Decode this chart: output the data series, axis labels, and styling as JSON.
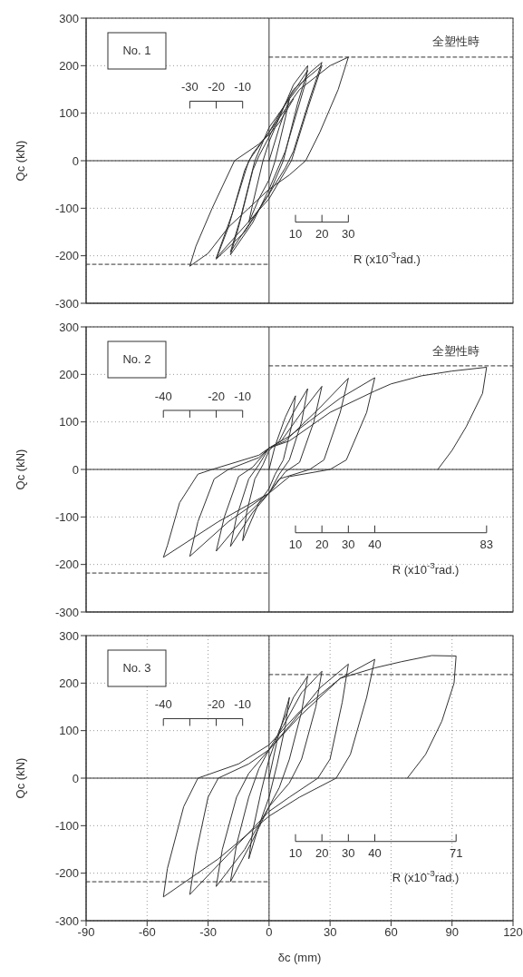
{
  "chart_data": [
    {
      "type": "line",
      "ylabel": "Qc (kN)",
      "xlim": [
        -90,
        120
      ],
      "xticks": [
        -90,
        -60,
        -30,
        0,
        30,
        60,
        90,
        120
      ],
      "ylim": [
        -300,
        300
      ],
      "yticks": [
        -300,
        -200,
        -100,
        0,
        100,
        200,
        300
      ],
      "grid": true,
      "tick_labels": "y",
      "annotations": [
        "No. 1",
        "全塑性時",
        "-30",
        "-20",
        "-10",
        "10",
        "20",
        "30",
        "R  (x10$^{-3}$rad.)"
      ],
      "series": [
        {
          "type": "line",
          "color": "#333333",
          "x": [
            0,
            0
          ],
          "values": [
            -300,
            300
          ]
        },
        {
          "type": "line",
          "color": "#333333",
          "x": [
            -90,
            120
          ],
          "values": [
            0,
            0
          ]
        },
        {
          "color": "#333333",
          "x": [
            0,
            5,
            10,
            8,
            3,
            0,
            -5,
            -10,
            -8,
            -3,
            0,
            5,
            12,
            19,
            18,
            8,
            5,
            0,
            -8,
            -19,
            -15,
            -8,
            -5,
            0,
            8,
            19,
            14,
            7,
            0,
            -19,
            -14,
            -7,
            0,
            10,
            20,
            26,
            20,
            12,
            8,
            0,
            -12,
            -26,
            -20,
            -12,
            -8,
            0,
            12,
            26,
            19,
            11,
            0,
            -26,
            -18,
            -10,
            0,
            15,
            30,
            39,
            34,
            25,
            18,
            10,
            0,
            -20,
            -30,
            -39,
            -36,
            -28,
            -17,
            -5,
            0,
            5,
            12
          ],
          "values": [
            0,
            70,
            130,
            90,
            0,
            -40,
            -80,
            -130,
            -90,
            0,
            40,
            90,
            160,
            200,
            165,
            20,
            -10,
            -60,
            -130,
            -198,
            -140,
            -20,
            10,
            50,
            120,
            190,
            120,
            0,
            -70,
            -192,
            -120,
            0,
            70,
            130,
            185,
            207,
            130,
            20,
            -15,
            -70,
            -150,
            -207,
            -140,
            -20,
            15,
            60,
            150,
            200,
            110,
            0,
            -80,
            -205,
            -110,
            0,
            60,
            150,
            200,
            218,
            150,
            60,
            0,
            -30,
            -60,
            -140,
            -195,
            -222,
            -180,
            -100,
            0,
            35,
            55,
            80,
            130
          ]
        },
        {
          "type": "line",
          "color": "#333333",
          "line_style": "dashed",
          "x": [
            0,
            120
          ],
          "values": [
            218,
            218
          ]
        },
        {
          "type": "line",
          "color": "#333333",
          "line_style": "dashed",
          "x": [
            -90,
            0
          ],
          "values": [
            -218,
            -218
          ]
        }
      ]
    },
    {
      "type": "line",
      "ylabel": "Qc (kN)",
      "xlim": [
        -90,
        120
      ],
      "xticks": [
        -90,
        -60,
        -30,
        0,
        30,
        60,
        90,
        120
      ],
      "ylim": [
        -300,
        300
      ],
      "yticks": [
        -300,
        -200,
        -100,
        0,
        100,
        200,
        300
      ],
      "grid": true,
      "tick_labels": "y",
      "annotations": [
        "No. 2",
        "全塑性時",
        "-40",
        "-20",
        "-10",
        "10",
        "20",
        "30",
        "40",
        "83",
        "R  (x10$^{-3}$rad.)"
      ],
      "series": [
        {
          "type": "line",
          "color": "#333333",
          "x": [
            0,
            0
          ],
          "values": [
            -300,
            300
          ]
        },
        {
          "type": "line",
          "color": "#333333",
          "x": [
            -90,
            120
          ],
          "values": [
            0,
            0
          ]
        },
        {
          "color": "#333333",
          "x": [
            0,
            3,
            8,
            13,
            11,
            7,
            3,
            0,
            -5,
            -13,
            -11,
            -7,
            -3,
            0,
            5,
            12,
            19,
            16,
            10,
            5,
            0,
            -8,
            -19,
            -16,
            -10,
            -5,
            0,
            6,
            16,
            26,
            22,
            15,
            8,
            0,
            -12,
            -26,
            -22,
            -15,
            -8,
            0,
            8,
            25,
            39,
            35,
            27,
            20,
            5,
            0,
            -20,
            -39,
            -35,
            -27,
            -20,
            -5,
            0,
            10,
            35,
            52,
            48,
            38,
            30,
            10,
            0,
            -25,
            -52,
            -50,
            -44,
            -35,
            -28,
            -5,
            0,
            10,
            30,
            52,
            60,
            75,
            90,
            107,
            105,
            97,
            90,
            83
          ],
          "values": [
            0,
            50,
            110,
            155,
            90,
            20,
            -10,
            -40,
            -70,
            -150,
            -90,
            -20,
            10,
            40,
            60,
            120,
            170,
            100,
            20,
            -10,
            -50,
            -90,
            -162,
            -100,
            -20,
            10,
            45,
            60,
            120,
            175,
            100,
            15,
            -5,
            -50,
            -100,
            -172,
            -100,
            -15,
            5,
            45,
            60,
            130,
            192,
            120,
            20,
            0,
            -20,
            -50,
            -110,
            -183,
            -110,
            -20,
            0,
            25,
            45,
            70,
            150,
            193,
            120,
            20,
            0,
            -15,
            -50,
            -110,
            -185,
            -160,
            -70,
            -10,
            0,
            30,
            45,
            60,
            120,
            165,
            180,
            197,
            207,
            215,
            160,
            90,
            40,
            0
          ]
        },
        {
          "type": "line",
          "color": "#333333",
          "line_style": "dashed",
          "x": [
            0,
            120
          ],
          "values": [
            218,
            218
          ]
        },
        {
          "type": "line",
          "color": "#333333",
          "line_style": "dashed",
          "x": [
            -90,
            0
          ],
          "values": [
            -218,
            -218
          ]
        }
      ]
    },
    {
      "type": "line",
      "xlabel": "δc (mm)",
      "ylabel": "Qc (kN)",
      "xlim": [
        -90,
        120
      ],
      "xticks": [
        -90,
        -60,
        -30,
        0,
        30,
        60,
        90,
        120
      ],
      "ylim": [
        -300,
        300
      ],
      "yticks": [
        -300,
        -200,
        -100,
        0,
        100,
        200,
        300
      ],
      "grid": true,
      "annotations": [
        "No. 3",
        "-40",
        "-20",
        "-10",
        "10",
        "20",
        "30",
        "40",
        "71",
        "R  (x10$^{-3}$rad.)"
      ],
      "series": [
        {
          "type": "line",
          "color": "#333333",
          "x": [
            0,
            0
          ],
          "values": [
            -300,
            300
          ]
        },
        {
          "type": "line",
          "color": "#333333",
          "x": [
            -90,
            120
          ],
          "values": [
            0,
            0
          ]
        },
        {
          "color": "#333333",
          "x": [
            0,
            4,
            10,
            8,
            4,
            0,
            -5,
            -10,
            -8,
            -4,
            0,
            5,
            12,
            19,
            16,
            10,
            5,
            0,
            -8,
            -19,
            -16,
            -10,
            -5,
            0,
            7,
            16,
            26,
            23,
            16,
            10,
            0,
            -12,
            -26,
            -23,
            -16,
            -10,
            0,
            10,
            25,
            39,
            36,
            30,
            24,
            10,
            0,
            -20,
            -39,
            -36,
            -30,
            -25,
            -10,
            0,
            15,
            35,
            52,
            48,
            40,
            33,
            15,
            0,
            -25,
            -52,
            -50,
            -42,
            -35,
            -15,
            0,
            15,
            35,
            52,
            65,
            80,
            92,
            91,
            85,
            77,
            68
          ],
          "values": [
            0,
            80,
            170,
            110,
            30,
            -40,
            -100,
            -170,
            -110,
            -30,
            40,
            100,
            170,
            215,
            140,
            40,
            -20,
            -60,
            -130,
            -218,
            -140,
            -40,
            20,
            60,
            110,
            180,
            225,
            150,
            40,
            -10,
            -60,
            -150,
            -228,
            -150,
            -40,
            10,
            60,
            110,
            190,
            240,
            160,
            40,
            0,
            -40,
            -70,
            -160,
            -245,
            -160,
            -40,
            0,
            30,
            60,
            130,
            210,
            250,
            170,
            50,
            0,
            -40,
            -80,
            -170,
            -250,
            -190,
            -60,
            0,
            30,
            70,
            140,
            210,
            232,
            245,
            258,
            257,
            200,
            120,
            50,
            0
          ]
        },
        {
          "type": "line",
          "color": "#333333",
          "line_style": "dashed",
          "x": [
            0,
            120
          ],
          "values": [
            218,
            218
          ]
        },
        {
          "type": "line",
          "color": "#333333",
          "line_style": "dashed",
          "x": [
            -90,
            0
          ],
          "values": [
            -218,
            -218
          ]
        }
      ]
    }
  ]
}
